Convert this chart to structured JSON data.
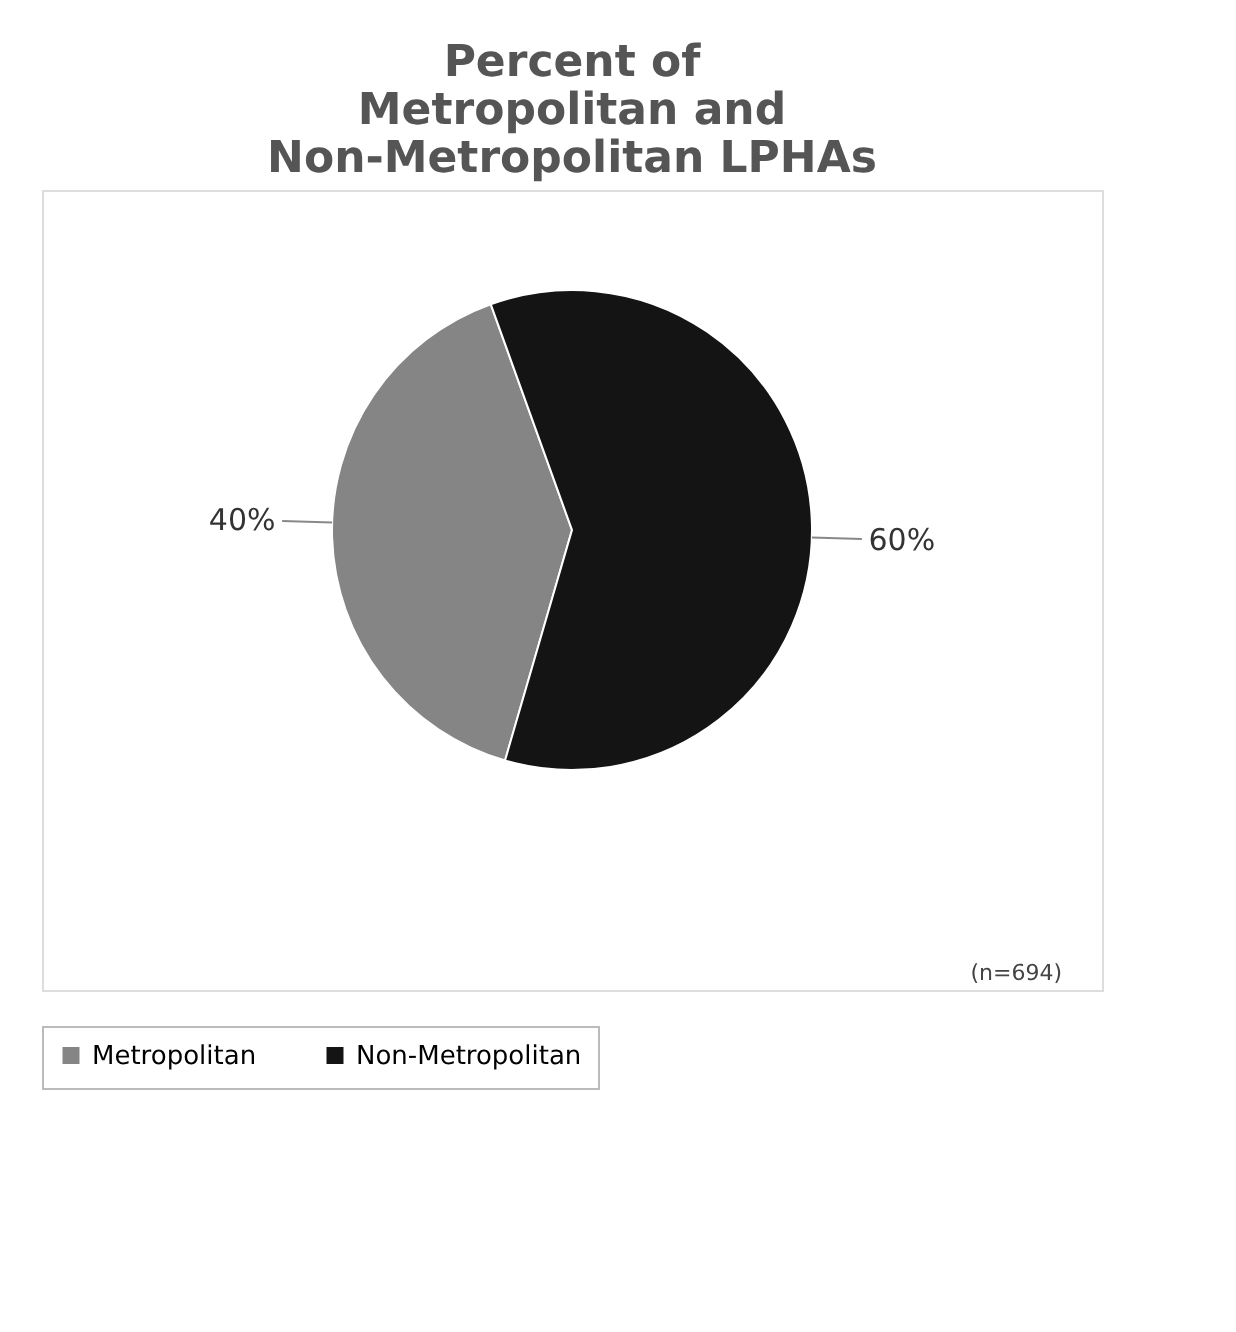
{
  "chart_data": {
    "type": "pie",
    "title": "Percent of Metropolitan and Non-Metropolitan LPHAs",
    "categories": [
      "Metropolitan",
      "Non-Metropolitan"
    ],
    "values": [
      40,
      60
    ],
    "colors": [
      "#858585",
      "#141414"
    ],
    "value_labels": [
      "40%",
      "60%"
    ],
    "legend": "bottom",
    "annotations": [
      "(n=694)"
    ]
  }
}
